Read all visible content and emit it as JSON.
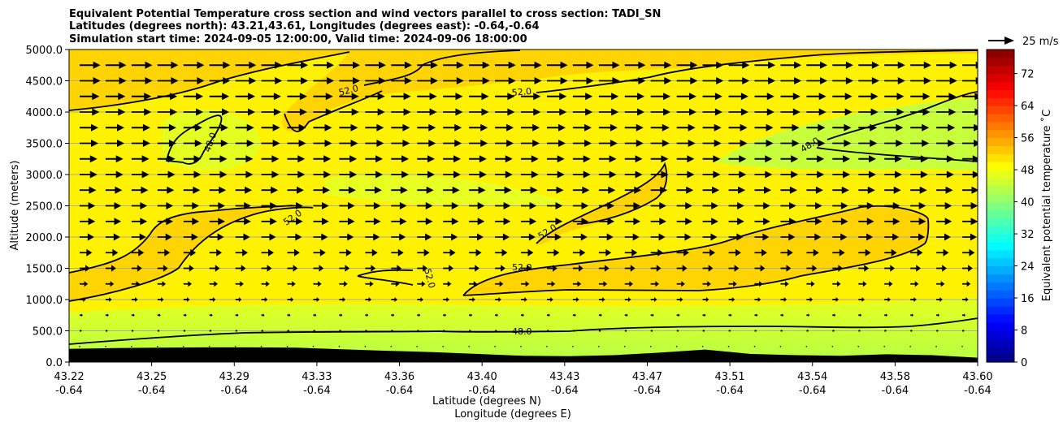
{
  "chart_data": {
    "type": "heatmap",
    "title": [
      "Equivalent Potential Temperature cross section and wind vectors parallel to cross section: TADI_SN",
      "Latitudes (degrees north): 43.21,43.61, Longitudes (degrees east): -0.64,-0.64",
      "Simulation start time: 2024-09-05 12:00:00, Valid time: 2024-09-06 18:00:00"
    ],
    "xlabel": [
      "Latitude (degrees N)",
      "Longitude (degrees E)"
    ],
    "ylabel": "Altitude (meters)",
    "x_ticks_lat": [
      "43.22",
      "43.25",
      "43.29",
      "43.33",
      "43.36",
      "43.40",
      "43.43",
      "43.47",
      "43.51",
      "43.54",
      "43.58",
      "43.60"
    ],
    "x_ticks_lon": [
      "-0.64",
      "-0.64",
      "-0.64",
      "-0.64",
      "-0.64",
      "-0.64",
      "-0.64",
      "-0.64",
      "-0.64",
      "-0.64",
      "-0.64",
      "-0.64"
    ],
    "y_ticks": [
      "0.0",
      "500.0",
      "1000.0",
      "1500.0",
      "2000.0",
      "2500.0",
      "3000.0",
      "3500.0",
      "4000.0",
      "4500.0",
      "5000.0"
    ],
    "ylim": [
      0,
      5000
    ],
    "grid": "horizontal",
    "colorbar": {
      "label": "Equivalent potential temperature ˚C",
      "ticks": [
        "0",
        "8",
        "16",
        "24",
        "32",
        "40",
        "48",
        "56",
        "64",
        "72"
      ],
      "range": [
        0,
        78
      ],
      "colormap": "jet"
    },
    "quiver_key": {
      "label": "25 m/s",
      "value": 25
    },
    "contour_labels": [
      "48.0",
      "52.0",
      "52.0",
      "52.0",
      "52.0",
      "52.0",
      "52.0",
      "48.0",
      "48.0"
    ],
    "terrain": {
      "x_fraction": [
        0,
        0.05,
        0.1,
        0.15,
        0.2,
        0.25,
        0.3,
        0.35,
        0.4,
        0.45,
        0.5,
        0.55,
        0.6,
        0.65,
        0.7,
        0.75,
        0.8,
        0.85,
        0.9,
        0.95,
        1.0
      ],
      "altitude_m": [
        210,
        225,
        230,
        235,
        235,
        230,
        205,
        180,
        160,
        130,
        100,
        95,
        110,
        150,
        200,
        130,
        110,
        100,
        125,
        110,
        70
      ]
    },
    "wind_rows_altitude_m": [
      250,
      500,
      750,
      1000,
      1250,
      1500,
      1750,
      2000,
      2250,
      2500,
      2750,
      3000,
      3250,
      3500,
      3750,
      4000,
      4250,
      4500,
      4750
    ],
    "wind_row_speed_m_s": [
      1,
      2,
      3,
      6,
      8,
      10,
      12,
      14,
      15,
      15,
      16,
      17,
      17,
      18,
      18,
      19,
      19,
      20,
      20
    ]
  },
  "colors": {
    "terrain": "#000000",
    "band_52_56": "#ffd700",
    "band_48_52": "#fff000",
    "band_44_48": "#b8ff40",
    "contour": "#000000"
  }
}
